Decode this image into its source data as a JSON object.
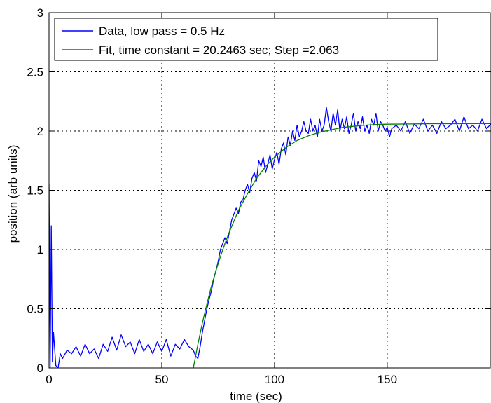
{
  "chart_data": {
    "type": "line",
    "title": "",
    "xlabel": "time (sec)",
    "ylabel": "position (arb units)",
    "xlim": [
      0,
      196
    ],
    "ylim": [
      0,
      3
    ],
    "x_ticks": [
      0,
      50,
      100,
      150
    ],
    "x_tick_labels": [
      "0",
      "50",
      "100",
      "150"
    ],
    "y_ticks": [
      0,
      0.5,
      1,
      1.5,
      2,
      2.5,
      3
    ],
    "y_tick_labels": [
      "0",
      "0.5",
      "1",
      "1.5",
      "2",
      "2.5",
      "3"
    ],
    "grid": true,
    "legend_position": "top-left",
    "series": [
      {
        "name": "Data, low pass = 0.5 Hz",
        "color": "#0000ff",
        "x": [
          0,
          0.5,
          1,
          1.5,
          2,
          3,
          4,
          5,
          6,
          8,
          10,
          12,
          14,
          16,
          18,
          20,
          22,
          24,
          26,
          28,
          30,
          32,
          34,
          36,
          38,
          40,
          42,
          44,
          46,
          48,
          50,
          52,
          54,
          56,
          58,
          60,
          62,
          64,
          65,
          66,
          67,
          68,
          69,
          70,
          71,
          72,
          73,
          74,
          75,
          76,
          77,
          78,
          79,
          80,
          81,
          82,
          83,
          84,
          85,
          86,
          87,
          88,
          89,
          90,
          91,
          92,
          93,
          94,
          95,
          96,
          97,
          98,
          99,
          100,
          101,
          102,
          103,
          104,
          105,
          106,
          107,
          108,
          109,
          110,
          111,
          112,
          113,
          114,
          115,
          116,
          117,
          118,
          119,
          120,
          121,
          122,
          123,
          124,
          125,
          126,
          127,
          128,
          129,
          130,
          131,
          132,
          133,
          134,
          135,
          136,
          137,
          138,
          139,
          140,
          141,
          142,
          143,
          144,
          145,
          146,
          147,
          148,
          149,
          150,
          151,
          152,
          154,
          156,
          158,
          160,
          162,
          164,
          166,
          168,
          170,
          172,
          174,
          176,
          178,
          180,
          182,
          184,
          186,
          188,
          190,
          192,
          194,
          196
        ],
        "y": [
          1.55,
          0.0,
          1.2,
          0.05,
          0.3,
          0.02,
          0.0,
          0.12,
          0.08,
          0.15,
          0.12,
          0.18,
          0.1,
          0.2,
          0.12,
          0.16,
          0.08,
          0.2,
          0.14,
          0.26,
          0.15,
          0.28,
          0.18,
          0.22,
          0.12,
          0.24,
          0.14,
          0.2,
          0.12,
          0.22,
          0.14,
          0.24,
          0.1,
          0.2,
          0.16,
          0.24,
          0.18,
          0.15,
          0.1,
          0.08,
          0.18,
          0.3,
          0.4,
          0.5,
          0.58,
          0.65,
          0.75,
          0.82,
          0.9,
          1.0,
          1.05,
          1.1,
          1.05,
          1.15,
          1.25,
          1.3,
          1.35,
          1.3,
          1.4,
          1.42,
          1.5,
          1.55,
          1.48,
          1.6,
          1.65,
          1.58,
          1.75,
          1.7,
          1.78,
          1.65,
          1.72,
          1.8,
          1.68,
          1.76,
          1.82,
          1.72,
          1.85,
          1.9,
          1.8,
          1.95,
          1.88,
          2.0,
          1.92,
          2.05,
          1.95,
          2.0,
          2.08,
          2.0,
          1.98,
          2.1,
          2.0,
          2.05,
          1.95,
          2.1,
          2.0,
          2.05,
          2.2,
          2.08,
          2.0,
          2.15,
          2.05,
          2.18,
          2.0,
          2.1,
          2.02,
          2.12,
          1.98,
          2.05,
          2.15,
          2.0,
          2.08,
          2.02,
          2.12,
          2.0,
          2.05,
          1.98,
          2.1,
          2.05,
          2.15,
          2.0,
          2.08,
          2.05,
          2.0,
          2.03,
          1.95,
          2.02,
          2.05,
          2.0,
          2.08,
          1.98,
          2.06,
          2.02,
          2.1,
          2.0,
          2.05,
          1.98,
          2.08,
          2.02,
          2.05,
          2.1,
          2.0,
          2.12,
          2.02,
          2.05,
          2.0,
          2.1,
          2.02,
          2.06
        ]
      },
      {
        "name": "Fit, time constant = 20.2463 sec; Step =2.063",
        "color": "#008000",
        "x": [
          64,
          66,
          68,
          70,
          72,
          74,
          76,
          78,
          80,
          84,
          88,
          92,
          96,
          100,
          105,
          110,
          115,
          120,
          125,
          130,
          135,
          140,
          145,
          150,
          160,
          170,
          180,
          190,
          196
        ],
        "y": [
          0.0,
          0.2,
          0.38,
          0.54,
          0.69,
          0.82,
          0.94,
          1.05,
          1.15,
          1.33,
          1.47,
          1.6,
          1.7,
          1.78,
          1.86,
          1.92,
          1.96,
          1.99,
          2.01,
          2.03,
          2.04,
          2.05,
          2.055,
          2.058,
          2.06,
          2.062,
          2.062,
          2.063,
          2.063
        ]
      }
    ]
  }
}
